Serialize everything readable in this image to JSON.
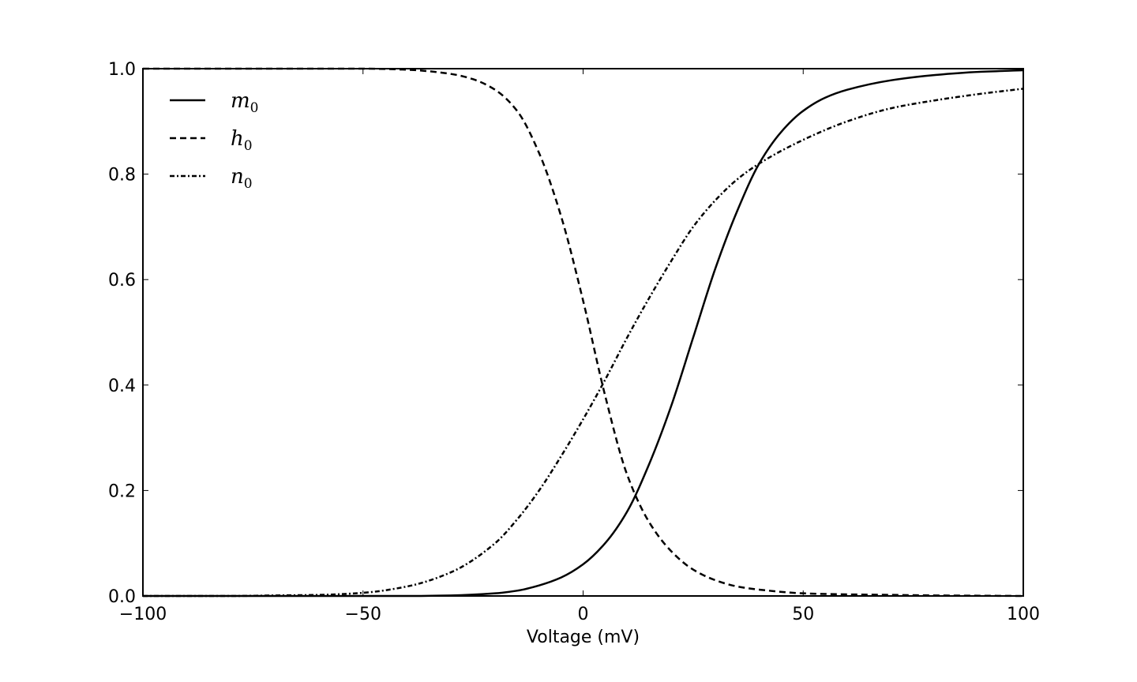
{
  "chart_data": {
    "type": "line",
    "title": "",
    "xlabel": "Voltage (mV)",
    "ylabel": "",
    "xlim": [
      -100,
      100
    ],
    "ylim": [
      0,
      1
    ],
    "xticks": [
      -100,
      -50,
      0,
      50,
      100
    ],
    "xtick_labels": [
      "−100",
      "−50",
      "0",
      "50",
      "100"
    ],
    "yticks": [
      0,
      0.2,
      0.4,
      0.6,
      0.8,
      1
    ],
    "ytick_labels": [
      "0.0",
      "0.2",
      "0.4",
      "0.6",
      "0.8",
      "1.0"
    ],
    "grid": false,
    "legend_position": "top-left",
    "series": [
      {
        "name": "m",
        "subscript": "0",
        "style": "solid",
        "color": "#000000",
        "x": [
          -100,
          -80,
          -60,
          -50,
          -40,
          -30,
          -20,
          -15,
          -10,
          -5,
          0,
          5,
          10,
          15,
          20,
          25,
          30,
          35,
          40,
          45,
          50,
          55,
          60,
          70,
          80,
          90,
          100
        ],
        "y": [
          0,
          0,
          0,
          0,
          0,
          0.001,
          0.005,
          0.01,
          0.02,
          0.035,
          0.06,
          0.1,
          0.16,
          0.25,
          0.36,
          0.49,
          0.62,
          0.73,
          0.82,
          0.88,
          0.92,
          0.945,
          0.96,
          0.978,
          0.988,
          0.994,
          0.997
        ]
      },
      {
        "name": "h",
        "subscript": "0",
        "style": "dashed",
        "color": "#000000",
        "x": [
          -100,
          -80,
          -60,
          -50,
          -40,
          -30,
          -25,
          -20,
          -15,
          -10,
          -5,
          0,
          5,
          10,
          15,
          20,
          25,
          30,
          35,
          40,
          50,
          60,
          70,
          80,
          100
        ],
        "y": [
          1,
          1,
          1,
          1,
          0.998,
          0.99,
          0.98,
          0.96,
          0.92,
          0.84,
          0.72,
          0.56,
          0.38,
          0.23,
          0.14,
          0.085,
          0.05,
          0.03,
          0.018,
          0.012,
          0.005,
          0.003,
          0.002,
          0.001,
          0
        ]
      },
      {
        "name": "n",
        "subscript": "0",
        "style": "dashdot",
        "color": "#000000",
        "x": [
          -100,
          -80,
          -70,
          -60,
          -50,
          -40,
          -30,
          -20,
          -15,
          -10,
          -5,
          0,
          5,
          10,
          15,
          20,
          25,
          30,
          35,
          40,
          50,
          60,
          70,
          80,
          90,
          100
        ],
        "y": [
          0,
          0,
          0.001,
          0.002,
          0.006,
          0.018,
          0.045,
          0.1,
          0.145,
          0.2,
          0.265,
          0.335,
          0.41,
          0.49,
          0.565,
          0.635,
          0.7,
          0.75,
          0.79,
          0.82,
          0.865,
          0.9,
          0.925,
          0.94,
          0.952,
          0.962
        ]
      }
    ]
  }
}
